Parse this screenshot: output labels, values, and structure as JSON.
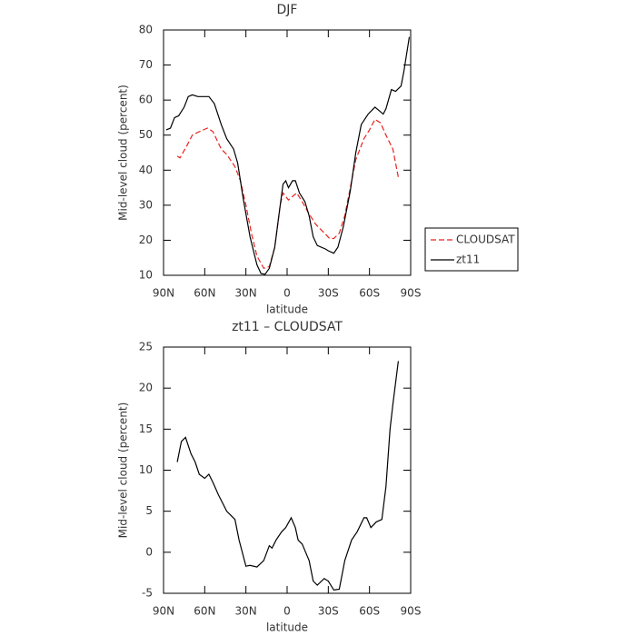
{
  "chart_data": [
    {
      "type": "line",
      "title": "DJF",
      "x_label": "latitude",
      "y_label": "Mid-level cloud (percent)",
      "xlim": [
        90,
        -90
      ],
      "xticks": [
        {
          "value": 90,
          "label": "90N"
        },
        {
          "value": 60,
          "label": "60N"
        },
        {
          "value": 30,
          "label": "30N"
        },
        0,
        {
          "value": -30,
          "label": "30S"
        },
        {
          "value": -60,
          "label": "60S"
        },
        {
          "value": -90,
          "label": "90S"
        }
      ],
      "ylim": [
        10,
        80
      ],
      "yticks": [
        10,
        20,
        30,
        40,
        50,
        60,
        70,
        80
      ],
      "legend": "outside-right",
      "series": [
        {
          "name": "CLOUDSAT",
          "color": "#e8231f",
          "dash": true,
          "x": [
            80,
            78,
            73,
            69,
            64,
            58,
            54,
            48,
            44,
            38,
            34,
            30,
            26,
            22,
            17,
            13,
            9,
            5,
            3,
            -1,
            -4,
            -7,
            -11,
            -16,
            -21,
            -26,
            -31,
            -34,
            -38,
            -42,
            -46,
            -50,
            -56,
            -60,
            -64,
            -68,
            -72,
            -77,
            -81
          ],
          "values": [
            44,
            43.5,
            47,
            50,
            51,
            52,
            51,
            46,
            44.5,
            41,
            37,
            30,
            22,
            15.5,
            12,
            12.5,
            18,
            30,
            33.5,
            31.5,
            32.5,
            33.5,
            31,
            27.5,
            24.5,
            22.5,
            20.5,
            20.5,
            22,
            27,
            35,
            43,
            49,
            51.5,
            54.5,
            53.5,
            50,
            46,
            38
          ]
        },
        {
          "name": "zt11",
          "color": "#000000",
          "dash": false,
          "x": [
            88,
            85,
            82,
            79,
            75,
            72,
            69,
            65,
            60,
            57,
            53,
            48,
            44,
            39,
            36,
            32,
            27,
            22,
            19,
            16,
            13,
            9,
            5,
            3,
            1,
            -1,
            -4,
            -6,
            -9,
            -13,
            -16,
            -19,
            -22,
            -28,
            -30,
            -34,
            -37,
            -41,
            -46,
            -50,
            -54,
            -59,
            -64,
            -67,
            -70,
            -72,
            -76,
            -79,
            -83,
            -85,
            -89
          ],
          "values": [
            51.5,
            52,
            55,
            55.5,
            58,
            61,
            61.5,
            61,
            61,
            61,
            59,
            53,
            49,
            46,
            42,
            32,
            21,
            13,
            10.5,
            10.3,
            12,
            18,
            30,
            36,
            37,
            35,
            37,
            37,
            33.5,
            31,
            27,
            21,
            18.5,
            17.5,
            17,
            16.3,
            18,
            24,
            34,
            45,
            53,
            56,
            58,
            57,
            56,
            57.5,
            63,
            62.5,
            64,
            68,
            78
          ]
        }
      ]
    },
    {
      "type": "line",
      "title": "zt11 – CLOUDSAT",
      "x_label": "latitude",
      "y_label": "Mid-level cloud (percent)",
      "xlim": [
        90,
        -90
      ],
      "xticks": [
        {
          "value": 90,
          "label": "90N"
        },
        {
          "value": 60,
          "label": "60N"
        },
        {
          "value": 30,
          "label": "30N"
        },
        0,
        {
          "value": -30,
          "label": "30S"
        },
        {
          "value": -60,
          "label": "60S"
        },
        {
          "value": -90,
          "label": "90S"
        }
      ],
      "ylim": [
        -5,
        25
      ],
      "yticks": [
        -5,
        0,
        5,
        10,
        15,
        20,
        25
      ],
      "series": [
        {
          "color": "#000000",
          "dash": false,
          "x": [
            80,
            77,
            74,
            70,
            67,
            64,
            60,
            57,
            54,
            50,
            47,
            44,
            38,
            35,
            30,
            27,
            22,
            17,
            13,
            11,
            8,
            4,
            1,
            -3,
            -6,
            -8,
            -11,
            -16,
            -19,
            -22,
            -27,
            -30,
            -34,
            -38,
            -42,
            -47,
            -51,
            -56,
            -58,
            -61,
            -65,
            -69,
            -72,
            -75,
            -77,
            -81
          ],
          "values": [
            11,
            13.5,
            14,
            12,
            11,
            9.5,
            9,
            9.5,
            8.5,
            7,
            6,
            5,
            4,
            1.5,
            -1.7,
            -1.6,
            -1.8,
            -1,
            0.8,
            0.5,
            1.5,
            2.5,
            3,
            4.2,
            3,
            1.5,
            1,
            -1,
            -3.5,
            -4,
            -3.2,
            -3.5,
            -4.6,
            -4.5,
            -1,
            1.5,
            2.5,
            4.2,
            4.2,
            3,
            3.7,
            4,
            8,
            15,
            18,
            23.3
          ]
        }
      ]
    }
  ]
}
